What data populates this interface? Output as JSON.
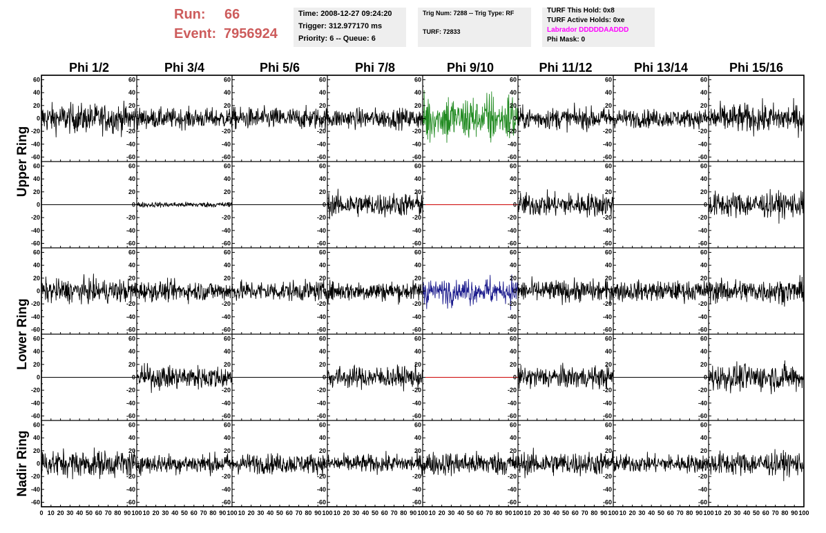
{
  "header": {
    "run_label": "Run:",
    "run_value": "66",
    "event_label": "Event:",
    "event_value": "7956924",
    "colors": {
      "run_text": "#cd5c5c",
      "labrador": "#ff00ff",
      "box_bg": "#eeeeee"
    },
    "box1": {
      "time": "Time: 2008-12-27 09:24:20",
      "trigger": "Trigger: 312.977170 ms",
      "priority": "Priority: 6 -- Queue: 6"
    },
    "box2": {
      "trig": "Trig Num: 7288 -- Trig Type: RF",
      "turf": "TURF: 72833"
    },
    "box3": {
      "this_hold": "TURF This Hold: 0x8",
      "active_holds": "TURF Active Holds: 0xe",
      "labrador": "Labrador DDDDDAADDD",
      "phi_mask": "Phi Mask: 0"
    }
  },
  "chart_data": {
    "type": "line",
    "columns": [
      "Phi 1/2",
      "Phi 3/4",
      "Phi 5/6",
      "Phi 7/8",
      "Phi 9/10",
      "Phi 11/12",
      "Phi 13/14",
      "Phi 15/16"
    ],
    "ring_labels": [
      {
        "text": "Upper Ring",
        "rows": [
          0,
          1
        ]
      },
      {
        "text": "Lower Ring",
        "rows": [
          2,
          3
        ]
      },
      {
        "text": "Nadir Ring",
        "rows": [
          4,
          4
        ]
      }
    ],
    "xlim": [
      0,
      100
    ],
    "ylim": [
      -67,
      67
    ],
    "y_ticks": [
      -60,
      -40,
      -20,
      0,
      20,
      40,
      60
    ],
    "x_ticks": [
      0,
      10,
      20,
      30,
      40,
      50,
      60,
      70,
      80,
      90,
      100
    ],
    "x_tick_labels": [
      "0",
      "10",
      "20",
      "30",
      "40",
      "50",
      "60",
      "70",
      "80",
      "90",
      "100"
    ],
    "waveform_colors": {
      "default": "#000000",
      "upper_trigger": "#228b22",
      "lower_trigger": "#1a1a8c",
      "flat_trigger": "#cc0000"
    },
    "panels": [
      [
        {
          "amp": 16,
          "color": "default"
        },
        {
          "amp": 11,
          "color": "default"
        },
        {
          "amp": 12,
          "color": "default"
        },
        {
          "amp": 11,
          "color": "default"
        },
        {
          "amp": 33,
          "color": "upper_trigger"
        },
        {
          "amp": 12,
          "color": "default"
        },
        {
          "amp": 10,
          "color": "default"
        },
        {
          "amp": 16,
          "color": "default"
        }
      ],
      [
        {
          "amp": 0,
          "color": "default"
        },
        {
          "amp": 3,
          "color": "default"
        },
        {
          "amp": 0,
          "color": "default"
        },
        {
          "amp": 13,
          "color": "default"
        },
        {
          "amp": 0,
          "color": "flat_trigger"
        },
        {
          "amp": 13,
          "color": "default"
        },
        {
          "amp": 0,
          "color": "default"
        },
        {
          "amp": 14,
          "color": "default"
        }
      ],
      [
        {
          "amp": 13,
          "color": "default"
        },
        {
          "amp": 11,
          "color": "default"
        },
        {
          "amp": 11,
          "color": "default"
        },
        {
          "amp": 11,
          "color": "default"
        },
        {
          "amp": 18,
          "color": "lower_trigger"
        },
        {
          "amp": 12,
          "color": "default"
        },
        {
          "amp": 11,
          "color": "default"
        },
        {
          "amp": 13,
          "color": "default"
        }
      ],
      [
        {
          "amp": 0,
          "color": "default"
        },
        {
          "amp": 13,
          "color": "default"
        },
        {
          "amp": 0,
          "color": "default"
        },
        {
          "amp": 12,
          "color": "default"
        },
        {
          "amp": 0,
          "color": "flat_trigger"
        },
        {
          "amp": 12,
          "color": "default"
        },
        {
          "amp": 0,
          "color": "default"
        },
        {
          "amp": 15,
          "color": "default"
        }
      ],
      [
        {
          "amp": 15,
          "color": "default"
        },
        {
          "amp": 11,
          "color": "default"
        },
        {
          "amp": 11,
          "color": "default"
        },
        {
          "amp": 10,
          "color": "default"
        },
        {
          "amp": 13,
          "color": "default"
        },
        {
          "amp": 13,
          "color": "default"
        },
        {
          "amp": 10,
          "color": "default"
        },
        {
          "amp": 13,
          "color": "default"
        }
      ]
    ]
  }
}
